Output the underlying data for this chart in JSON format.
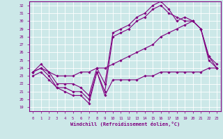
{
  "xlabel": "Windchill (Refroidissement éolien,°C)",
  "background_color": "#cce8e8",
  "grid_color": "#ffffff",
  "line_color": "#800080",
  "xlim": [
    -0.5,
    23.5
  ],
  "ylim": [
    18.5,
    32.5
  ],
  "yticks": [
    19,
    20,
    21,
    22,
    23,
    24,
    25,
    26,
    27,
    28,
    29,
    30,
    31,
    32
  ],
  "xticks": [
    0,
    1,
    2,
    3,
    4,
    5,
    6,
    7,
    8,
    9,
    10,
    11,
    12,
    13,
    14,
    15,
    16,
    17,
    18,
    19,
    20,
    21,
    22,
    23
  ],
  "series": [
    {
      "x": [
        0,
        1,
        2,
        3,
        4,
        5,
        6,
        7,
        8,
        9,
        10,
        11,
        12,
        13,
        14,
        15,
        16,
        17,
        18,
        19,
        20,
        21,
        22,
        23
      ],
      "y": [
        23.5,
        24.5,
        23.5,
        22.0,
        22.0,
        22.0,
        21.5,
        20.5,
        24.0,
        22.0,
        28.5,
        29.0,
        29.5,
        30.5,
        31.0,
        32.0,
        32.5,
        31.5,
        30.0,
        30.5,
        30.0,
        29.0,
        25.5,
        24.0
      ]
    },
    {
      "x": [
        0,
        1,
        2,
        3,
        4,
        5,
        6,
        7,
        8,
        9,
        10,
        11,
        12,
        13,
        14,
        15,
        16,
        17,
        18,
        19,
        20,
        21,
        22,
        23
      ],
      "y": [
        23.5,
        24.0,
        23.0,
        21.5,
        21.5,
        21.0,
        21.0,
        20.0,
        23.5,
        21.0,
        28.0,
        28.5,
        29.0,
        30.0,
        30.5,
        31.5,
        32.0,
        31.0,
        30.5,
        30.0,
        30.0,
        29.0,
        25.0,
        24.0
      ]
    },
    {
      "x": [
        0,
        1,
        2,
        3,
        4,
        5,
        6,
        7,
        8,
        9,
        10,
        11,
        12,
        13,
        14,
        15,
        16,
        17,
        18,
        19,
        20,
        21,
        22,
        23
      ],
      "y": [
        23.5,
        24.0,
        23.5,
        23.0,
        23.0,
        23.0,
        23.5,
        23.5,
        24.0,
        24.0,
        24.5,
        25.0,
        25.5,
        26.0,
        26.5,
        27.0,
        28.0,
        28.5,
        29.0,
        29.5,
        30.0,
        29.0,
        25.5,
        24.5
      ]
    },
    {
      "x": [
        0,
        1,
        2,
        3,
        4,
        5,
        6,
        7,
        8,
        9,
        10,
        11,
        12,
        13,
        14,
        15,
        16,
        17,
        18,
        19,
        20,
        21,
        22,
        23
      ],
      "y": [
        23.0,
        23.5,
        22.5,
        21.5,
        21.0,
        20.5,
        20.5,
        19.5,
        23.5,
        20.5,
        22.5,
        22.5,
        22.5,
        22.5,
        23.0,
        23.0,
        23.5,
        23.5,
        23.5,
        23.5,
        23.5,
        23.5,
        24.0,
        24.0
      ]
    }
  ]
}
